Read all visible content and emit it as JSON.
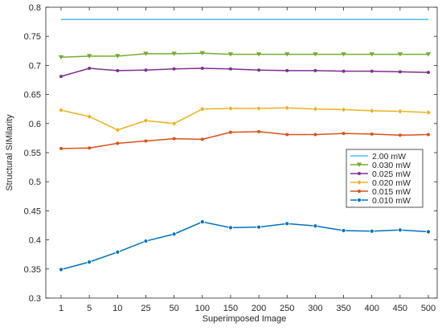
{
  "chart_data": {
    "type": "line",
    "xlabel": "Superimposed Image",
    "ylabel": "Structural SIMilarity",
    "categories": [
      "1",
      "5",
      "10",
      "25",
      "50",
      "100",
      "150",
      "200",
      "250",
      "300",
      "350",
      "400",
      "450",
      "500"
    ],
    "ylim": [
      0.3,
      0.8
    ],
    "yticks": [
      "0.3",
      "0.35",
      "0.4",
      "0.45",
      "0.5",
      "0.55",
      "0.6",
      "0.65",
      "0.7",
      "0.75",
      "0.8"
    ],
    "grid": false,
    "legend_position": "right",
    "series": [
      {
        "name": "2.00 mW",
        "color": "#4dbeee",
        "marker": "none",
        "values": [
          0.779,
          0.779,
          0.779,
          0.779,
          0.779,
          0.779,
          0.779,
          0.779,
          0.779,
          0.779,
          0.779,
          0.779,
          0.779,
          0.779
        ]
      },
      {
        "name": "0.030 mW",
        "color": "#77ac30",
        "marker": "triangle-down",
        "values": [
          0.714,
          0.716,
          0.716,
          0.72,
          0.72,
          0.721,
          0.719,
          0.719,
          0.719,
          0.719,
          0.719,
          0.719,
          0.719,
          0.719
        ]
      },
      {
        "name": "0.025 mW",
        "color": "#7e2f8e",
        "marker": "dot",
        "values": [
          0.681,
          0.695,
          0.691,
          0.692,
          0.694,
          0.695,
          0.694,
          0.692,
          0.691,
          0.691,
          0.69,
          0.69,
          0.689,
          0.688
        ]
      },
      {
        "name": "0.020 mW",
        "color": "#edb120",
        "marker": "diamond",
        "values": [
          0.623,
          0.612,
          0.589,
          0.605,
          0.6,
          0.625,
          0.626,
          0.626,
          0.627,
          0.625,
          0.624,
          0.622,
          0.621,
          0.619
        ]
      },
      {
        "name": "0.015 mW",
        "color": "#d95319",
        "marker": "dot",
        "values": [
          0.557,
          0.558,
          0.566,
          0.57,
          0.574,
          0.573,
          0.585,
          0.586,
          0.581,
          0.581,
          0.583,
          0.582,
          0.58,
          0.581
        ]
      },
      {
        "name": "0.010 mW",
        "color": "#0072bd",
        "marker": "circle",
        "values": [
          0.349,
          0.362,
          0.379,
          0.398,
          0.41,
          0.431,
          0.421,
          0.422,
          0.428,
          0.424,
          0.416,
          0.415,
          0.417,
          0.414
        ]
      }
    ]
  }
}
